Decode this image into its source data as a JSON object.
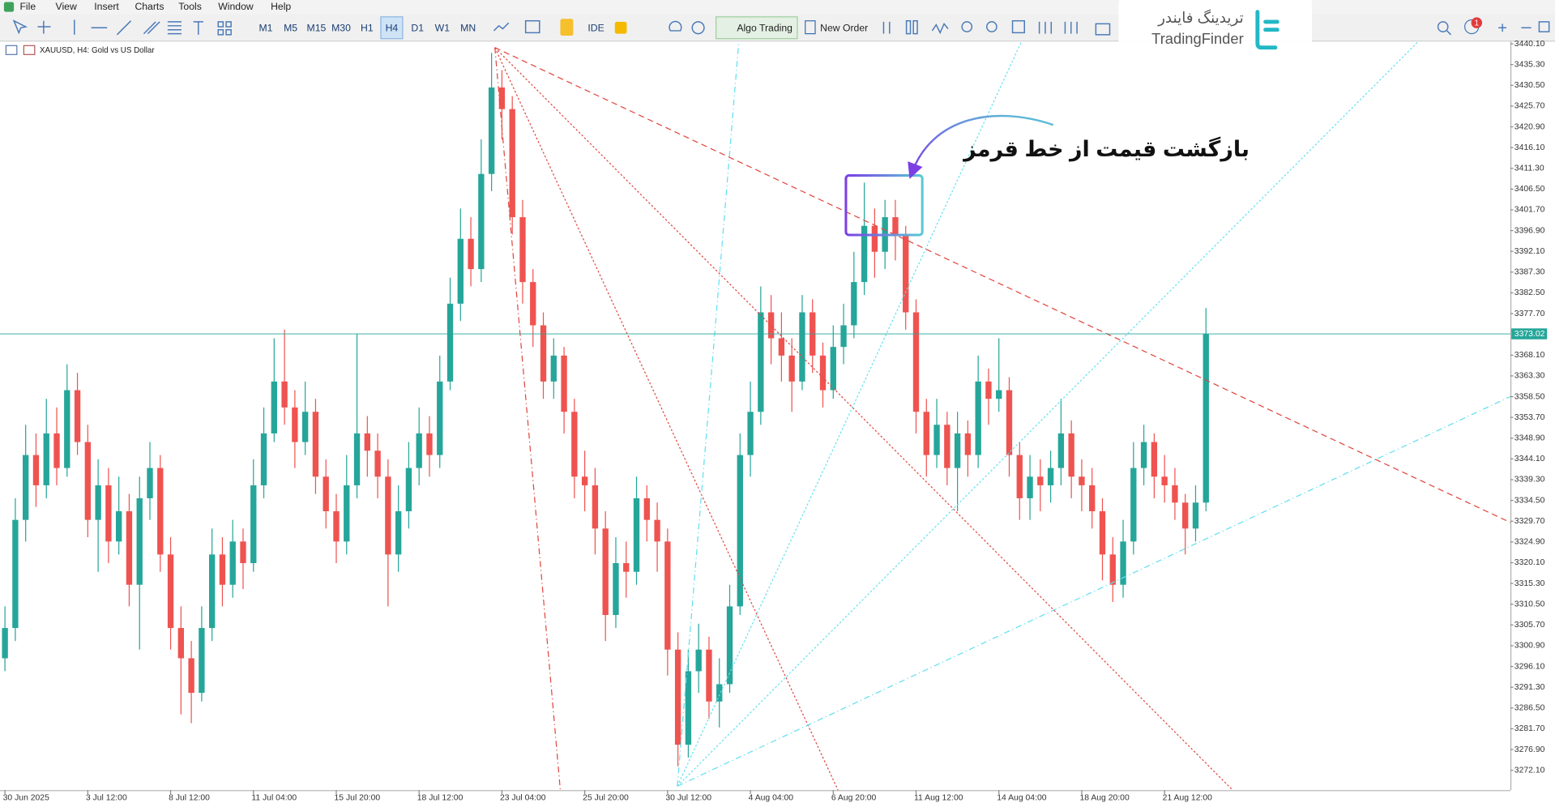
{
  "menu": [
    "File",
    "View",
    "Insert",
    "Charts",
    "Tools",
    "Window",
    "Help"
  ],
  "toolbar": {
    "timeframes": [
      "M1",
      "M5",
      "M15",
      "M30",
      "H1",
      "H4",
      "D1",
      "W1",
      "MN"
    ],
    "active_timeframe": "H4",
    "ide": "IDE",
    "algo_trading": "Algo Trading",
    "new_order": "New Order",
    "notifications": 1
  },
  "watermark": {
    "persian": "تریدینگ فایندر",
    "latin": "TradingFinder"
  },
  "chart_data": {
    "type": "candlestick",
    "symbol_label": "XAUUSD, H4: Gold vs US Dollar",
    "annotation": "بازگشت قیمت از خط قرمز",
    "categories": [
      "30 Jun 2025",
      null,
      null,
      null,
      null,
      null,
      null,
      null,
      "3 Jul 12:00",
      null,
      null,
      null,
      null,
      null,
      null,
      null,
      "8 Jul 12:00",
      null,
      null,
      null,
      null,
      null,
      null,
      null,
      "11 Jul 04:00",
      null,
      null,
      null,
      null,
      null,
      null,
      null,
      "15 Jul 20:00",
      null,
      null,
      null,
      null,
      null,
      null,
      null,
      "18 Jul 12:00",
      null,
      null,
      null,
      null,
      null,
      null,
      null,
      "23 Jul 04:00",
      null,
      null,
      null,
      null,
      null,
      null,
      null,
      "25 Jul 20:00",
      null,
      null,
      null,
      null,
      null,
      null,
      null,
      "30 Jul 12:00",
      null,
      null,
      null,
      null,
      null,
      null,
      null,
      "4 Aug 04:00",
      null,
      null,
      null,
      null,
      null,
      null,
      null,
      "6 Aug 20:00",
      null,
      null,
      null,
      null,
      null,
      null,
      null,
      "11 Aug 12:00",
      null,
      null,
      null,
      null,
      null,
      null,
      null,
      "14 Aug 04:00",
      null,
      null,
      null,
      null,
      null,
      null,
      null,
      "18 Aug 20:00",
      null,
      null,
      null,
      null,
      null,
      null,
      null,
      "21 Aug 12:00",
      null,
      null,
      null,
      null
    ],
    "open": [
      3298,
      3305,
      3330,
      3345,
      3338,
      3350,
      3342,
      3360,
      3348,
      3330,
      3338,
      3325,
      3332,
      3315,
      3335,
      3342,
      3322,
      3305,
      3298,
      3290,
      3305,
      3322,
      3315,
      3325,
      3320,
      3338,
      3350,
      3362,
      3356,
      3348,
      3355,
      3340,
      3332,
      3325,
      3338,
      3350,
      3346,
      3340,
      3322,
      3332,
      3342,
      3350,
      3345,
      3362,
      3380,
      3395,
      3388,
      3410,
      3430,
      3425,
      3400,
      3385,
      3375,
      3362,
      3368,
      3355,
      3340,
      3338,
      3328,
      3308,
      3320,
      3318,
      3335,
      3330,
      3325,
      3300,
      3278,
      3295,
      3300,
      3288,
      3292,
      3310,
      3345,
      3355,
      3378,
      3372,
      3368,
      3362,
      3378,
      3368,
      3360,
      3370,
      3375,
      3385,
      3398,
      3392,
      3400,
      3396,
      3378,
      3355,
      3345,
      3352,
      3342,
      3350,
      3345,
      3362,
      3358,
      3360,
      3345,
      3335,
      3340,
      3338,
      3342,
      3350,
      3340,
      3338,
      3332,
      3322,
      3315,
      3325,
      3342,
      3348,
      3340,
      3338,
      3334,
      3328,
      3334
    ],
    "high": [
      3310,
      3335,
      3352,
      3350,
      3358,
      3356,
      3366,
      3364,
      3352,
      3344,
      3342,
      3340,
      3336,
      3340,
      3348,
      3345,
      3326,
      3310,
      3302,
      3310,
      3328,
      3326,
      3330,
      3328,
      3344,
      3356,
      3372,
      3374,
      3360,
      3362,
      3358,
      3344,
      3336,
      3345,
      3373,
      3354,
      3350,
      3344,
      3338,
      3348,
      3356,
      3354,
      3368,
      3386,
      3402,
      3400,
      3418,
      3438,
      3434,
      3428,
      3404,
      3388,
      3378,
      3372,
      3370,
      3358,
      3346,
      3342,
      3332,
      3326,
      3325,
      3340,
      3338,
      3334,
      3328,
      3304,
      3300,
      3306,
      3303,
      3298,
      3315,
      3350,
      3362,
      3384,
      3382,
      3378,
      3372,
      3382,
      3381,
      3371,
      3375,
      3380,
      3392,
      3408,
      3402,
      3404,
      3404,
      3398,
      3381,
      3358,
      3358,
      3355,
      3355,
      3353,
      3368,
      3365,
      3372,
      3363,
      3348,
      3345,
      3344,
      3346,
      3358,
      3353,
      3344,
      3342,
      3335,
      3326,
      3330,
      3348,
      3352,
      3350,
      3345,
      3342,
      3336,
      3338,
      3379
    ],
    "low": [
      3295,
      3302,
      3325,
      3333,
      3335,
      3338,
      3340,
      3345,
      3326,
      3318,
      3320,
      3322,
      3310,
      3300,
      3330,
      3318,
      3300,
      3285,
      3283,
      3288,
      3302,
      3310,
      3312,
      3314,
      3318,
      3335,
      3348,
      3352,
      3342,
      3345,
      3336,
      3328,
      3320,
      3322,
      3335,
      3340,
      3335,
      3310,
      3318,
      3328,
      3338,
      3340,
      3342,
      3360,
      3376,
      3384,
      3385,
      3406,
      3418,
      3396,
      3380,
      3370,
      3358,
      3358,
      3350,
      3335,
      3332,
      3322,
      3302,
      3305,
      3312,
      3315,
      3325,
      3318,
      3294,
      3273,
      3275,
      3290,
      3284,
      3282,
      3290,
      3308,
      3340,
      3352,
      3366,
      3362,
      3355,
      3360,
      3364,
      3356,
      3358,
      3366,
      3372,
      3382,
      3386,
      3388,
      3390,
      3374,
      3350,
      3340,
      3342,
      3338,
      3332,
      3340,
      3342,
      3352,
      3355,
      3340,
      3330,
      3330,
      3332,
      3334,
      3338,
      3335,
      3332,
      3328,
      3316,
      3311,
      3312,
      3322,
      3338,
      3335,
      3334,
      3330,
      3322,
      3325,
      3332
    ],
    "close": [
      3305,
      3330,
      3345,
      3338,
      3350,
      3342,
      3360,
      3348,
      3330,
      3338,
      3325,
      3332,
      3315,
      3335,
      3342,
      3322,
      3305,
      3298,
      3290,
      3305,
      3322,
      3315,
      3325,
      3320,
      3338,
      3350,
      3362,
      3356,
      3348,
      3355,
      3340,
      3332,
      3325,
      3338,
      3350,
      3346,
      3340,
      3322,
      3332,
      3342,
      3350,
      3345,
      3362,
      3380,
      3395,
      3388,
      3410,
      3430,
      3425,
      3400,
      3385,
      3375,
      3362,
      3368,
      3355,
      3340,
      3338,
      3328,
      3308,
      3320,
      3318,
      3335,
      3330,
      3325,
      3300,
      3278,
      3295,
      3300,
      3288,
      3292,
      3310,
      3345,
      3355,
      3378,
      3372,
      3368,
      3362,
      3378,
      3368,
      3360,
      3370,
      3375,
      3385,
      3398,
      3392,
      3400,
      3396,
      3378,
      3355,
      3345,
      3352,
      3342,
      3350,
      3345,
      3362,
      3358,
      3360,
      3345,
      3335,
      3340,
      3338,
      3342,
      3350,
      3340,
      3338,
      3332,
      3322,
      3315,
      3325,
      3342,
      3348,
      3340,
      3338,
      3334,
      3328,
      3334,
      3373
    ],
    "up_color": "#26a69a",
    "down_color": "#ef5350",
    "ylim": [
      3267.5,
      3440.6
    ],
    "yticks": [
      {
        "value": 3440.1,
        "label": "3440.10"
      },
      {
        "value": 3435.3,
        "label": "3435.30"
      },
      {
        "value": 3430.5,
        "label": "3430.50"
      },
      {
        "value": 3425.7,
        "label": "3425.70"
      },
      {
        "value": 3420.9,
        "label": "3420.90"
      },
      {
        "value": 3416.1,
        "label": "3416.10"
      },
      {
        "value": 3411.3,
        "label": "3411.30"
      },
      {
        "value": 3406.5,
        "label": "3406.50"
      },
      {
        "value": 3401.7,
        "label": "3401.70"
      },
      {
        "value": 3396.9,
        "label": "3396.90"
      },
      {
        "value": 3392.1,
        "label": "3392.10"
      },
      {
        "value": 3387.3,
        "label": "3387.30"
      },
      {
        "value": 3382.5,
        "label": "3382.50"
      },
      {
        "value": 3377.7,
        "label": "3377.70"
      },
      {
        "value": 3368.1,
        "label": "3368.10"
      },
      {
        "value": 3363.3,
        "label": "3363.30"
      },
      {
        "value": 3358.5,
        "label": "3358.50"
      },
      {
        "value": 3353.7,
        "label": "3353.70"
      },
      {
        "value": 3348.9,
        "label": "3348.90"
      },
      {
        "value": 3344.1,
        "label": "3344.10"
      },
      {
        "value": 3339.3,
        "label": "3339.30"
      },
      {
        "value": 3334.5,
        "label": "3334.50"
      },
      {
        "value": 3329.7,
        "label": "3329.70"
      },
      {
        "value": 3324.9,
        "label": "3324.90"
      },
      {
        "value": 3320.1,
        "label": "3320.10"
      },
      {
        "value": 3315.3,
        "label": "3315.30"
      },
      {
        "value": 3310.5,
        "label": "3310.50"
      },
      {
        "value": 3305.7,
        "label": "3305.70"
      },
      {
        "value": 3300.9,
        "label": "3300.90"
      },
      {
        "value": 3296.1,
        "label": "3296.10"
      },
      {
        "value": 3291.3,
        "label": "3291.30"
      },
      {
        "value": 3286.5,
        "label": "3286.50"
      },
      {
        "value": 3281.7,
        "label": "3281.70"
      },
      {
        "value": 3276.9,
        "label": "3276.90"
      },
      {
        "value": 3272.1,
        "label": "3272.10"
      }
    ],
    "current_price": 3373.02,
    "current_price_color": "#26a69a"
  }
}
